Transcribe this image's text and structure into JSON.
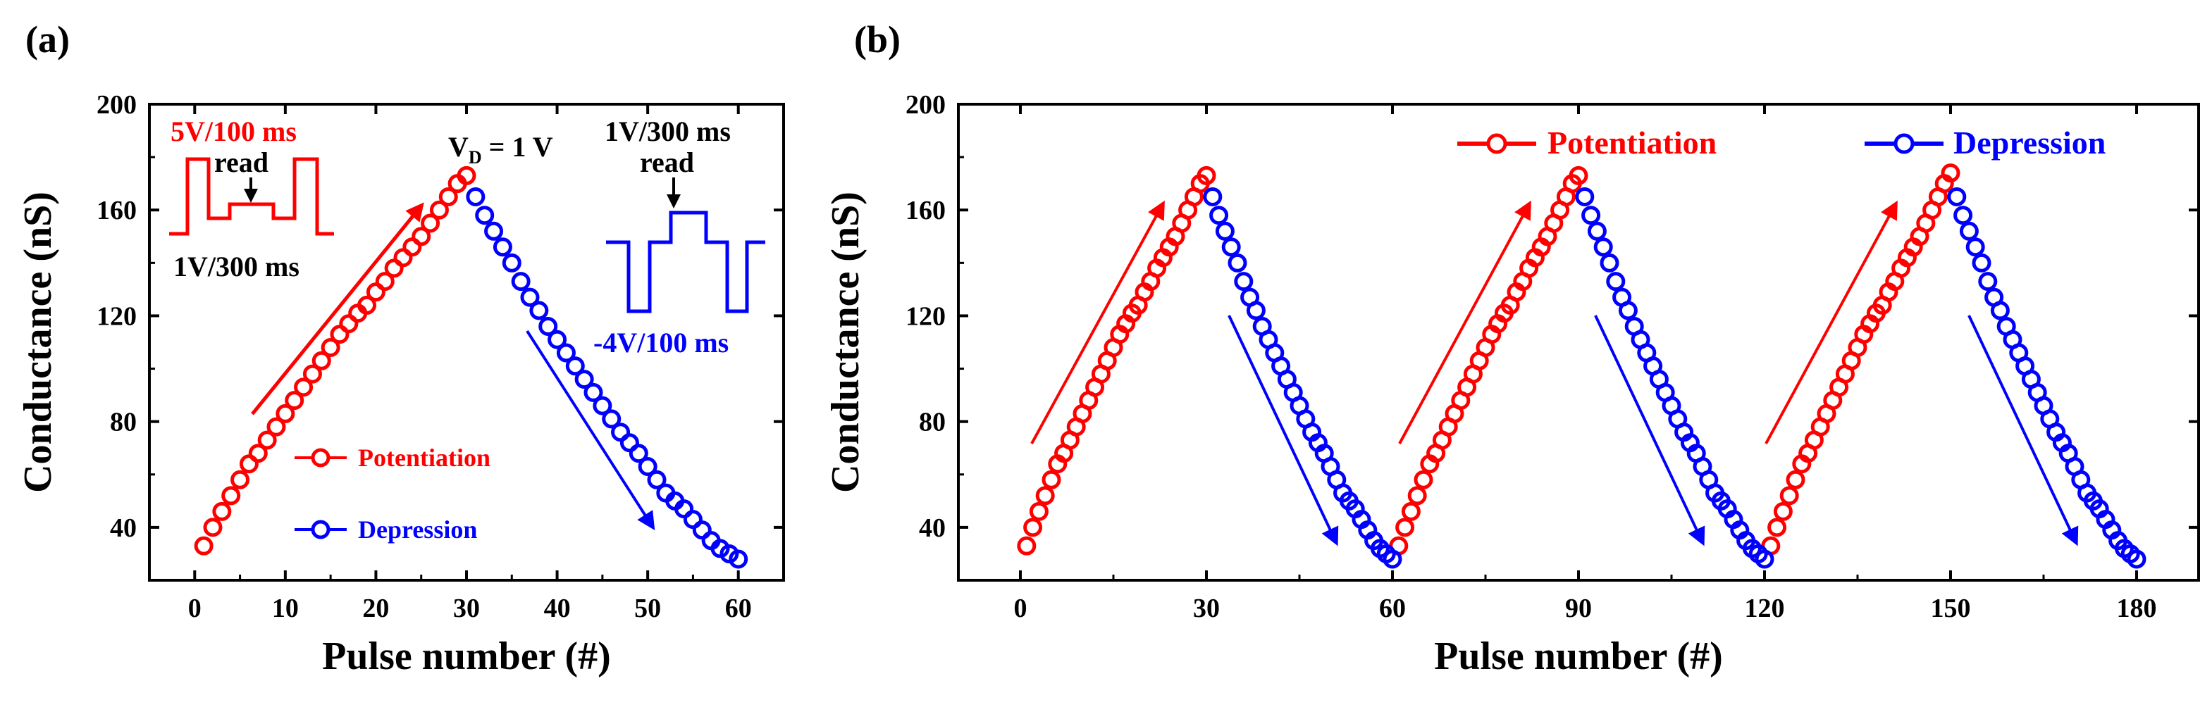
{
  "panels": {
    "a": {
      "label": "(a)"
    },
    "b": {
      "label": "(b)"
    }
  },
  "colors": {
    "potentiation": "#ff0000",
    "depression": "#0000ff",
    "axis": "#000000",
    "annotation": "#000000"
  },
  "annotations": {
    "vd": "V",
    "vd_sub": "D",
    "vd_rest": " = 1 V",
    "pot_pulse_top": "5V/100 ms",
    "pot_read": "read",
    "pot_pulse_bottom": "1V/300 ms",
    "dep_pulse_top": "1V/300 ms",
    "dep_read": "read",
    "dep_pulse_bottom": "-4V/100 ms"
  },
  "chart_data": [
    {
      "panel": "a",
      "type": "scatter",
      "title": "",
      "xlabel": "Pulse number (#)",
      "ylabel": "Conductance (nS)",
      "xlim": [
        -5,
        65
      ],
      "ylim": [
        20,
        200
      ],
      "xticks": [
        0,
        10,
        20,
        30,
        40,
        50,
        60
      ],
      "yticks": [
        40,
        80,
        120,
        160,
        200
      ],
      "legend": {
        "placement": "lower-center"
      },
      "series": [
        {
          "name": "Potentiation",
          "color": "#ff0000",
          "x": [
            1,
            2,
            3,
            4,
            5,
            6,
            7,
            8,
            9,
            10,
            11,
            12,
            13,
            14,
            15,
            16,
            17,
            18,
            19,
            20,
            21,
            22,
            23,
            24,
            25,
            26,
            27,
            28,
            29,
            30
          ],
          "y": [
            33,
            40,
            46,
            52,
            58,
            64,
            68,
            73,
            78,
            83,
            88,
            93,
            98,
            103,
            108,
            113,
            117,
            121,
            124,
            129,
            133,
            138,
            142,
            146,
            150,
            155,
            160,
            165,
            170,
            173
          ]
        },
        {
          "name": "Depression",
          "color": "#0000ff",
          "x": [
            31,
            32,
            33,
            34,
            35,
            36,
            37,
            38,
            39,
            40,
            41,
            42,
            43,
            44,
            45,
            46,
            47,
            48,
            49,
            50,
            51,
            52,
            53,
            54,
            55,
            56,
            57,
            58,
            59,
            60
          ],
          "y": [
            165,
            158,
            152,
            146,
            140,
            133,
            127,
            122,
            116,
            111,
            106,
            101,
            96,
            91,
            86,
            81,
            76,
            72,
            68,
            63,
            58,
            53,
            50,
            47,
            43,
            39,
            35,
            32,
            30,
            28
          ]
        }
      ]
    },
    {
      "panel": "b",
      "type": "scatter",
      "title": "",
      "xlabel": "Pulse number (#)",
      "ylabel": "Conductance (nS)",
      "xlim": [
        -10,
        190
      ],
      "ylim": [
        20,
        200
      ],
      "xticks": [
        0,
        30,
        60,
        90,
        120,
        150,
        180
      ],
      "yticks": [
        40,
        80,
        120,
        160,
        200
      ],
      "legend": {
        "placement": "top-right"
      },
      "series": [
        {
          "name": "Potentiation",
          "color": "#ff0000",
          "x": [
            1,
            2,
            3,
            4,
            5,
            6,
            7,
            8,
            9,
            10,
            11,
            12,
            13,
            14,
            15,
            16,
            17,
            18,
            19,
            20,
            21,
            22,
            23,
            24,
            25,
            26,
            27,
            28,
            29,
            30,
            61,
            62,
            63,
            64,
            65,
            66,
            67,
            68,
            69,
            70,
            71,
            72,
            73,
            74,
            75,
            76,
            77,
            78,
            79,
            80,
            81,
            82,
            83,
            84,
            85,
            86,
            87,
            88,
            89,
            90,
            121,
            122,
            123,
            124,
            125,
            126,
            127,
            128,
            129,
            130,
            131,
            132,
            133,
            134,
            135,
            136,
            137,
            138,
            139,
            140,
            141,
            142,
            143,
            144,
            145,
            146,
            147,
            148,
            149,
            150
          ],
          "y": [
            33,
            40,
            46,
            52,
            58,
            64,
            68,
            73,
            78,
            83,
            88,
            93,
            98,
            103,
            108,
            113,
            117,
            121,
            124,
            129,
            133,
            138,
            142,
            146,
            150,
            155,
            160,
            165,
            170,
            173,
            33,
            40,
            46,
            52,
            58,
            64,
            68,
            73,
            78,
            83,
            88,
            93,
            98,
            103,
            108,
            113,
            117,
            121,
            124,
            129,
            133,
            138,
            142,
            146,
            150,
            155,
            160,
            165,
            170,
            173,
            33,
            40,
            46,
            52,
            58,
            64,
            68,
            73,
            78,
            83,
            88,
            93,
            98,
            103,
            108,
            113,
            117,
            121,
            124,
            129,
            133,
            138,
            142,
            146,
            150,
            155,
            160,
            165,
            170,
            174
          ]
        },
        {
          "name": "Depression",
          "color": "#0000ff",
          "x": [
            31,
            32,
            33,
            34,
            35,
            36,
            37,
            38,
            39,
            40,
            41,
            42,
            43,
            44,
            45,
            46,
            47,
            48,
            49,
            50,
            51,
            52,
            53,
            54,
            55,
            56,
            57,
            58,
            59,
            60,
            91,
            92,
            93,
            94,
            95,
            96,
            97,
            98,
            99,
            100,
            101,
            102,
            103,
            104,
            105,
            106,
            107,
            108,
            109,
            110,
            111,
            112,
            113,
            114,
            115,
            116,
            117,
            118,
            119,
            120,
            151,
            152,
            153,
            154,
            155,
            156,
            157,
            158,
            159,
            160,
            161,
            162,
            163,
            164,
            165,
            166,
            167,
            168,
            169,
            170,
            171,
            172,
            173,
            174,
            175,
            176,
            177,
            178,
            179,
            180
          ],
          "y": [
            165,
            158,
            152,
            146,
            140,
            133,
            127,
            122,
            116,
            111,
            106,
            101,
            96,
            91,
            86,
            81,
            76,
            72,
            68,
            63,
            58,
            53,
            50,
            47,
            43,
            39,
            35,
            32,
            30,
            28,
            165,
            158,
            152,
            146,
            140,
            133,
            127,
            122,
            116,
            111,
            106,
            101,
            96,
            91,
            86,
            81,
            76,
            72,
            68,
            63,
            58,
            53,
            50,
            47,
            43,
            39,
            35,
            32,
            30,
            28,
            165,
            158,
            152,
            146,
            140,
            133,
            127,
            122,
            116,
            111,
            106,
            101,
            96,
            91,
            86,
            81,
            76,
            72,
            68,
            63,
            58,
            53,
            50,
            47,
            43,
            39,
            35,
            32,
            30,
            28
          ]
        }
      ]
    }
  ]
}
